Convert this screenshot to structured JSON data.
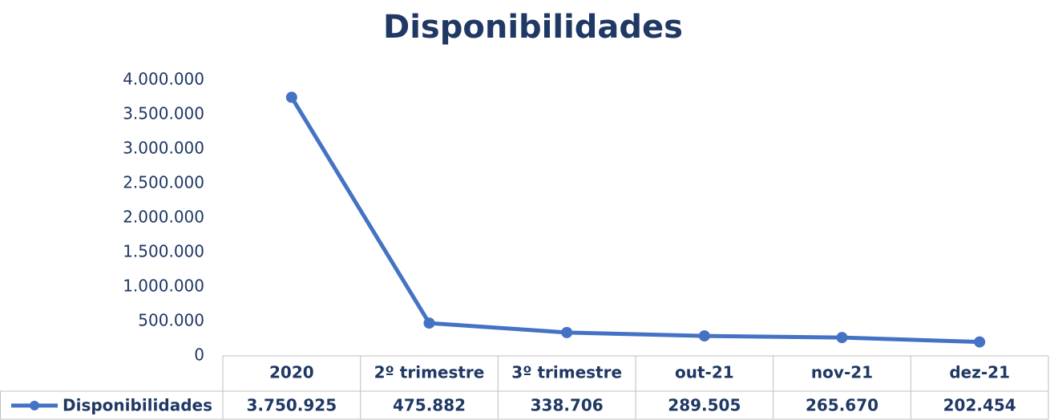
{
  "chart_data": {
    "type": "line",
    "title": "Disponibilidades",
    "categories": [
      "2020",
      "2º trimestre",
      "3º trimestre",
      "out-21",
      "nov-21",
      "dez-21"
    ],
    "series": [
      {
        "name": "Disponibilidades",
        "color": "#4472c4",
        "values": [
          3750925,
          475882,
          338706,
          289505,
          265670,
          202454
        ],
        "value_labels": [
          "3.750.925",
          "475.882",
          "338.706",
          "289.505",
          "265.670",
          "202.454"
        ]
      }
    ],
    "ylim": [
      0,
      4000000
    ],
    "yticks": [
      0,
      {
        "value": 500000,
        "label": "500.000"
      },
      {
        "value": 1000000,
        "label": "1.000.000"
      },
      {
        "value": 1500000,
        "label": "1.500.000"
      },
      {
        "value": 2000000,
        "label": "2.000.000"
      },
      {
        "value": 2500000,
        "label": "2.500.000"
      },
      {
        "value": 3000000,
        "label": "3.000.000"
      },
      {
        "value": 3500000,
        "label": "3.500.000"
      },
      {
        "value": 4000000,
        "label": "4.000.000"
      }
    ]
  }
}
